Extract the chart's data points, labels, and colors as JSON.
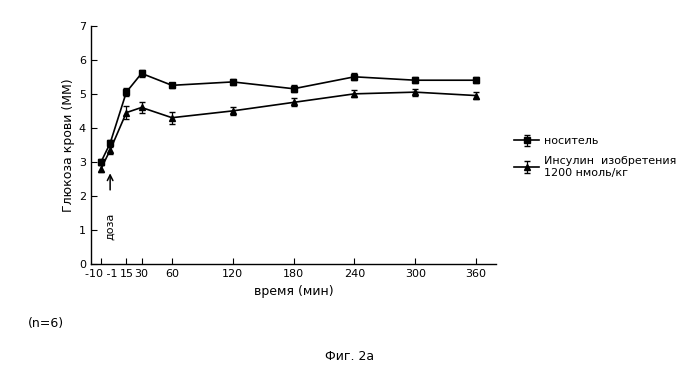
{
  "x_positions": [
    -10,
    -1,
    15,
    30,
    60,
    120,
    180,
    240,
    300,
    360
  ],
  "x_labels": [
    "-10 -1",
    "15",
    "30",
    "60",
    "120",
    "180",
    "240",
    "300",
    "360"
  ],
  "x_tick_positions": [
    -10,
    15,
    30,
    60,
    120,
    180,
    240,
    300,
    360
  ],
  "carrier_y": [
    3.0,
    3.55,
    5.05,
    5.6,
    5.25,
    5.35,
    5.15,
    5.5,
    5.4,
    5.4
  ],
  "carrier_yerr": [
    0.08,
    0.1,
    0.12,
    0.1,
    0.08,
    0.08,
    0.1,
    0.1,
    0.08,
    0.08
  ],
  "insulin_y": [
    2.8,
    3.35,
    4.45,
    4.6,
    4.3,
    4.5,
    4.75,
    5.0,
    5.05,
    4.95
  ],
  "insulin_yerr": [
    0.1,
    0.12,
    0.18,
    0.15,
    0.18,
    0.12,
    0.12,
    0.1,
    0.1,
    0.1
  ],
  "xlabel": "время (мин)",
  "ylabel": "Глюкоза крови (ММ)",
  "legend_carrier": "носитель",
  "legend_insulin": "Инсулин  изобретения\n1200 нмоль/кг",
  "dose_label": "доза",
  "ylim": [
    0,
    7
  ],
  "yticks": [
    0,
    1,
    2,
    3,
    4,
    5,
    6,
    7
  ],
  "n_label": "(n=6)",
  "fig_label": "Фиг. 2a",
  "line_color": "#000000",
  "background_color": "#ffffff"
}
